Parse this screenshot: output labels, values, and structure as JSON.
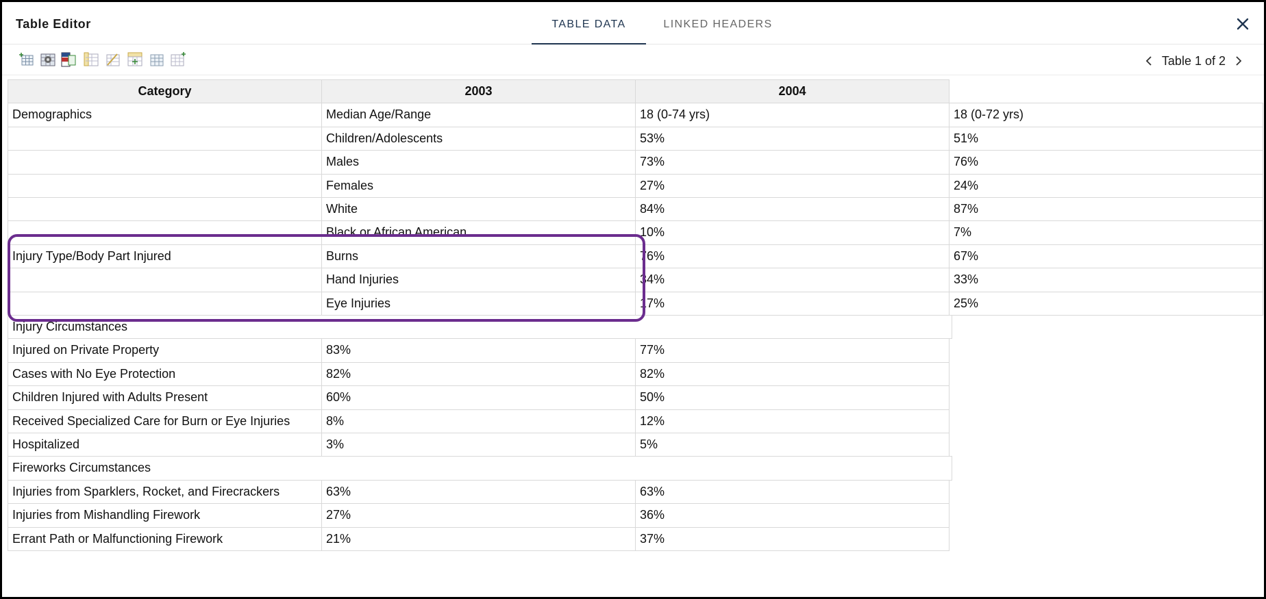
{
  "window": {
    "title": "Table Editor",
    "tabs": [
      {
        "label": "TABLE DATA",
        "active": true
      },
      {
        "label": "LINKED HEADERS",
        "active": false
      }
    ]
  },
  "toolbar": {
    "icons": [
      "insert-row-icon",
      "table-settings-icon",
      "table-header-icon",
      "column-icon",
      "cell-edit-icon",
      "insert-column-icon",
      "insert-row-below-icon",
      "delete-icon"
    ],
    "pager": {
      "label": "Table 1 of 2"
    }
  },
  "table": {
    "headers": [
      "Category",
      "2003",
      "2004"
    ],
    "rows": [
      [
        "Demographics",
        "Median Age/Range",
        "18 (0-74 yrs)",
        "18 (0-72 yrs)"
      ],
      [
        "",
        "Children/Adolescents",
        "53%",
        "51%"
      ],
      [
        "",
        "Males",
        "73%",
        "76%"
      ],
      [
        "",
        "Females",
        "27%",
        "24%"
      ],
      [
        "",
        "White",
        "84%",
        "87%"
      ],
      [
        "",
        "Black or African American",
        "10%",
        "7%"
      ],
      [
        "Injury Type/Body Part Injured",
        "Burns",
        "76%",
        "67%"
      ],
      [
        "",
        "Hand Injuries",
        "34%",
        "33%"
      ],
      [
        "",
        "Eye Injuries",
        "17%",
        "25%"
      ],
      [
        "Injury Circumstances"
      ],
      [
        "Injured on Private Property",
        "83%",
        "77%"
      ],
      [
        "Cases with No Eye Protection",
        "82%",
        "82%"
      ],
      [
        "Children Injured with Adults Present",
        "60%",
        "50%"
      ],
      [
        "Received Specialized Care for Burn or Eye Injuries",
        "8%",
        "12%"
      ],
      [
        "Hospitalized",
        "3%",
        "5%"
      ],
      [
        "Fireworks Circumstances"
      ],
      [
        "Injuries from Sparklers, Rocket, and Firecrackers",
        "63%",
        "63%"
      ],
      [
        "Injuries from Mishandling Firework",
        "27%",
        "36%"
      ],
      [
        "Errant Path or Malfunctioning Firework",
        "21%",
        "37%"
      ]
    ]
  },
  "colors": {
    "accent": "#1f3550",
    "highlight": "#6b2d8e"
  }
}
